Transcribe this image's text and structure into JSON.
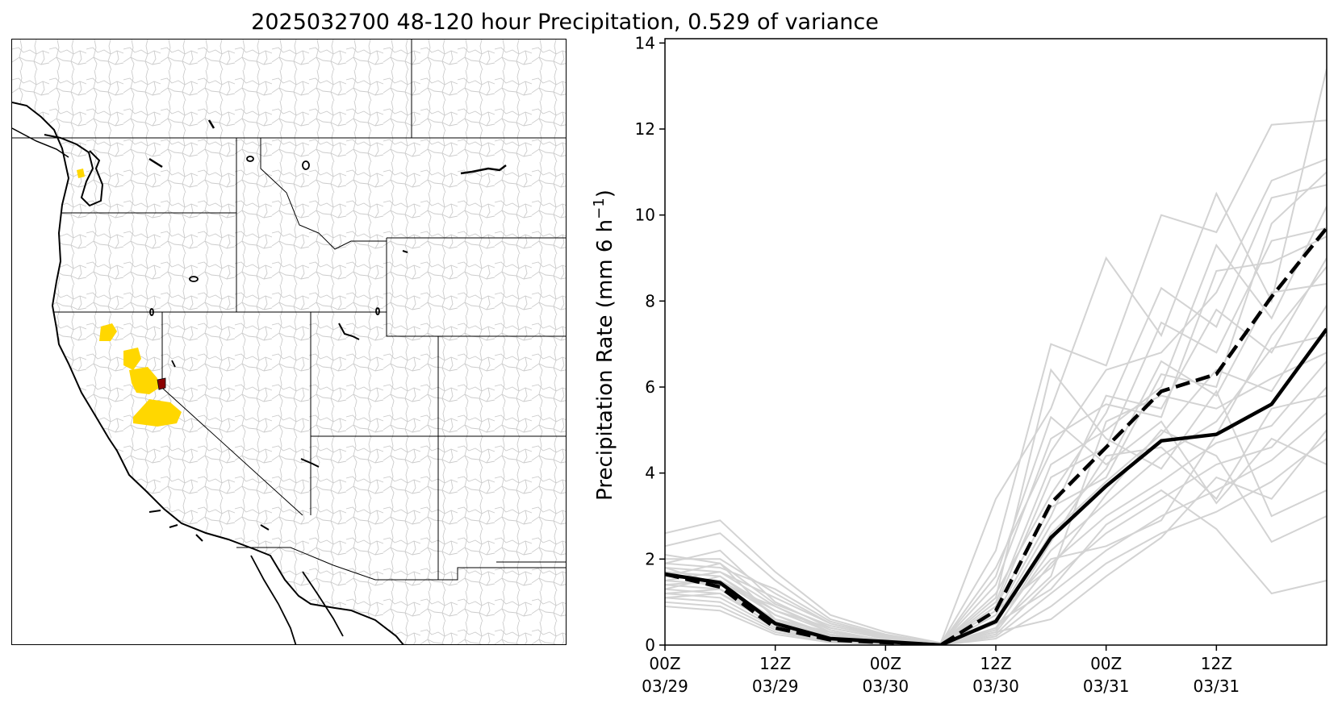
{
  "title": "2025032700 48-120 hour Precipitation, 0.529 of variance",
  "map": {
    "highlight_color": "#ffd700",
    "outlet_color": "#8b0000",
    "basin_line_color": "#c8c8c8",
    "boundary_color": "#000000"
  },
  "chart_data": {
    "type": "line",
    "ylabel": "Precipitation Rate (mm 6 h",
    "ylabel_sup": "−1",
    "ylabel_close": ")",
    "ylim": [
      0,
      14.1
    ],
    "yticks": [
      0,
      2,
      4,
      6,
      8,
      10,
      12,
      14
    ],
    "xlim": [
      0,
      72
    ],
    "xticks": [
      {
        "x": 0,
        "line1": "00Z",
        "line2": "03/29"
      },
      {
        "x": 12,
        "line1": "12Z",
        "line2": "03/29"
      },
      {
        "x": 24,
        "line1": "00Z",
        "line2": "03/30"
      },
      {
        "x": 36,
        "line1": "12Z",
        "line2": "03/30"
      },
      {
        "x": 48,
        "line1": "00Z",
        "line2": "03/31"
      },
      {
        "x": 60,
        "line1": "12Z",
        "line2": "03/31"
      }
    ],
    "x": [
      0,
      6,
      12,
      18,
      24,
      30,
      36,
      42,
      48,
      54,
      60,
      66,
      72
    ],
    "ensemble_color": "#d3d3d3",
    "series": [
      {
        "style": "solid-bold",
        "color": "#000000",
        "values": [
          1.65,
          1.45,
          0.5,
          0.15,
          0.08,
          0.0,
          0.55,
          2.5,
          3.7,
          4.75,
          4.9,
          5.6,
          7.35
        ]
      },
      {
        "style": "dashed-bold",
        "color": "#000000",
        "values": [
          1.65,
          1.35,
          0.4,
          0.12,
          0.06,
          0.0,
          0.8,
          3.3,
          4.6,
          5.9,
          6.3,
          8.1,
          9.7
        ]
      }
    ],
    "ensemble_members": [
      [
        2.6,
        2.9,
        1.7,
        0.7,
        0.3,
        0.05,
        3.4,
        5.5,
        9.0,
        7.2,
        10.5,
        8.0,
        13.4
      ],
      [
        2.3,
        2.6,
        1.5,
        0.6,
        0.25,
        0.03,
        2.2,
        7.0,
        6.5,
        10.0,
        9.6,
        12.1,
        12.2
      ],
      [
        2.0,
        2.0,
        1.2,
        0.5,
        0.2,
        0.02,
        1.8,
        4.5,
        6.4,
        6.8,
        8.2,
        10.8,
        11.3
      ],
      [
        1.9,
        2.2,
        1.0,
        0.4,
        0.15,
        0.02,
        1.2,
        3.5,
        5.4,
        8.3,
        7.4,
        10.4,
        10.7
      ],
      [
        1.8,
        1.7,
        0.9,
        0.3,
        0.12,
        0.01,
        1.0,
        4.2,
        5.0,
        6.0,
        9.3,
        7.6,
        10.2
      ],
      [
        1.7,
        1.6,
        0.8,
        0.3,
        0.1,
        0.01,
        0.9,
        3.9,
        4.6,
        7.5,
        6.8,
        9.4,
        9.7
      ],
      [
        1.6,
        1.5,
        0.7,
        0.25,
        0.1,
        0.0,
        0.7,
        3.0,
        5.8,
        5.5,
        7.8,
        6.8,
        9.0
      ],
      [
        1.5,
        1.4,
        0.6,
        0.2,
        0.08,
        0.0,
        0.6,
        2.8,
        4.1,
        6.6,
        5.8,
        8.2,
        8.4
      ],
      [
        1.4,
        1.3,
        0.5,
        0.18,
        0.07,
        0.0,
        0.5,
        2.6,
        3.8,
        4.9,
        6.4,
        5.9,
        7.9
      ],
      [
        1.3,
        1.2,
        0.45,
        0.15,
        0.06,
        0.0,
        0.4,
        2.2,
        3.3,
        4.4,
        5.2,
        6.9,
        7.2
      ],
      [
        1.2,
        1.1,
        0.4,
        0.12,
        0.05,
        0.0,
        0.3,
        1.9,
        3.0,
        3.8,
        4.7,
        5.1,
        6.6
      ],
      [
        1.1,
        1.0,
        0.35,
        0.1,
        0.04,
        0.0,
        0.25,
        1.5,
        2.6,
        3.4,
        4.2,
        4.6,
        6.0
      ],
      [
        1.0,
        0.9,
        0.3,
        0.08,
        0.03,
        0.0,
        0.2,
        1.2,
        2.2,
        3.0,
        3.6,
        4.3,
        5.4
      ],
      [
        0.9,
        0.8,
        0.25,
        0.06,
        0.02,
        0.0,
        0.15,
        0.9,
        1.9,
        2.6,
        3.1,
        3.8,
        4.8
      ],
      [
        1.5,
        1.7,
        1.1,
        0.5,
        0.2,
        0.02,
        1.6,
        5.3,
        4.2,
        5.2,
        3.3,
        4.8,
        4.2
      ],
      [
        1.8,
        1.4,
        0.9,
        0.35,
        0.1,
        0.01,
        1.1,
        6.4,
        4.8,
        4.1,
        5.9,
        3.0,
        3.6
      ],
      [
        2.1,
        1.9,
        0.6,
        0.3,
        0.12,
        0.02,
        0.8,
        1.8,
        3.5,
        5.0,
        4.4,
        2.4,
        3.0
      ],
      [
        1.3,
        1.6,
        0.7,
        0.2,
        0.09,
        0.0,
        0.5,
        1.3,
        2.8,
        3.6,
        2.7,
        1.2,
        1.5
      ],
      [
        1.7,
        1.3,
        0.5,
        0.25,
        0.1,
        0.01,
        0.3,
        0.6,
        1.6,
        2.5,
        3.9,
        3.4,
        5.0
      ],
      [
        1.4,
        1.5,
        0.8,
        0.4,
        0.15,
        0.01,
        0.6,
        2.0,
        2.3,
        2.9,
        4.9,
        7.2,
        8.8
      ],
      [
        1.2,
        1.3,
        0.6,
        0.3,
        0.11,
        0.0,
        0.4,
        1.6,
        5.2,
        5.8,
        5.5,
        6.2,
        6.8
      ],
      [
        1.9,
        1.8,
        1.3,
        0.55,
        0.22,
        0.03,
        0.9,
        3.2,
        3.9,
        6.3,
        6.0,
        9.8,
        11.0
      ],
      [
        1.6,
        1.9,
        0.95,
        0.45,
        0.18,
        0.02,
        1.4,
        4.8,
        5.6,
        5.3,
        8.7,
        8.9,
        9.5
      ],
      [
        1.1,
        1.2,
        0.55,
        0.22,
        0.08,
        0.0,
        0.35,
        2.4,
        4.4,
        4.6,
        3.4,
        5.5,
        5.8
      ]
    ]
  }
}
